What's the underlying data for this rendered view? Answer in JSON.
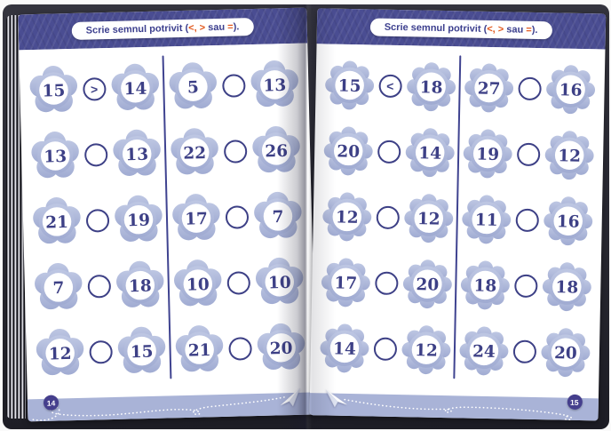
{
  "instruction": {
    "prefix": "Scrie semnul potrivit (",
    "signs": "<, >",
    "mid": " sau ",
    "eq": "=",
    "suffix": ")."
  },
  "pages": [
    {
      "side": "left",
      "page_number": "14",
      "badge_shape": "star",
      "columns": [
        {
          "rows": [
            {
              "left": "15",
              "sign": ">",
              "right": "14"
            },
            {
              "left": "13",
              "sign": "",
              "right": "13"
            },
            {
              "left": "21",
              "sign": "",
              "right": "19"
            },
            {
              "left": "7",
              "sign": "",
              "right": "18"
            },
            {
              "left": "12",
              "sign": "",
              "right": "15"
            }
          ]
        },
        {
          "rows": [
            {
              "left": "5",
              "sign": "",
              "right": "13"
            },
            {
              "left": "22",
              "sign": "",
              "right": "26"
            },
            {
              "left": "17",
              "sign": "",
              "right": "7"
            },
            {
              "left": "10",
              "sign": "",
              "right": "10"
            },
            {
              "left": "21",
              "sign": "",
              "right": "20"
            }
          ]
        }
      ]
    },
    {
      "side": "right",
      "page_number": "15",
      "badge_shape": "flower",
      "columns": [
        {
          "rows": [
            {
              "left": "15",
              "sign": "<",
              "right": "18"
            },
            {
              "left": "20",
              "sign": "",
              "right": "14"
            },
            {
              "left": "12",
              "sign": "",
              "right": "12"
            },
            {
              "left": "17",
              "sign": "",
              "right": "20"
            },
            {
              "left": "14",
              "sign": "",
              "right": "12"
            }
          ]
        },
        {
          "rows": [
            {
              "left": "27",
              "sign": "",
              "right": "16"
            },
            {
              "left": "19",
              "sign": "",
              "right": "12"
            },
            {
              "left": "11",
              "sign": "",
              "right": "16"
            },
            {
              "left": "18",
              "sign": "",
              "right": "18"
            },
            {
              "left": "24",
              "sign": "",
              "right": "20"
            }
          ]
        }
      ]
    }
  ],
  "colors": {
    "header_band": "#4a4d92",
    "accent_orange": "#e2581c",
    "badge_fill": "#aab4d8",
    "number_navy": "#3d4086",
    "footer_band": "#a9b3d7",
    "page_number_circle": "#453f8d"
  }
}
